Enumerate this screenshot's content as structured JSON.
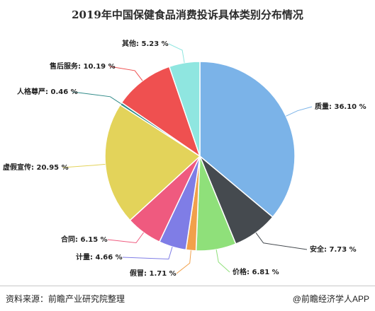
{
  "chart_data": {
    "type": "pie",
    "title": "2019年中国保健食品消费投诉具体类别分布情况",
    "slices": [
      {
        "label": "质量",
        "value": 36.1,
        "label_text": "质量: 36.10 %",
        "color": "#7bb3e8"
      },
      {
        "label": "安全",
        "value": 7.73,
        "label_text": "安全: 7.73 %",
        "color": "#454a4f"
      },
      {
        "label": "价格",
        "value": 6.81,
        "label_text": "价格: 6.81 %",
        "color": "#8fe07a"
      },
      {
        "label": "假冒",
        "value": 1.71,
        "label_text": "假冒: 1.71 %",
        "color": "#f1a04a"
      },
      {
        "label": "计量",
        "value": 4.66,
        "label_text": "计量: 4.66 %",
        "color": "#7f7de6"
      },
      {
        "label": "合同",
        "value": 6.15,
        "label_text": "合同: 6.15 %",
        "color": "#ef5a7f"
      },
      {
        "label": "虚假宣传",
        "value": 20.95,
        "label_text": "虚假宣传: 20.95 %",
        "color": "#e3d35a"
      },
      {
        "label": "人格尊严",
        "value": 0.46,
        "label_text": "人格尊严: 0.46 %",
        "color": "#2f8a88"
      },
      {
        "label": "售后服务",
        "value": 10.19,
        "label_text": "售后服务: 10.19 %",
        "color": "#ef5050"
      },
      {
        "label": "其他",
        "value": 5.23,
        "label_text": "其他: 5.23 %",
        "color": "#8fe6e0"
      }
    ]
  },
  "footer": {
    "source": "资料来源：前瞻产业研究院整理",
    "brand": "@前瞻经济学人APP"
  }
}
